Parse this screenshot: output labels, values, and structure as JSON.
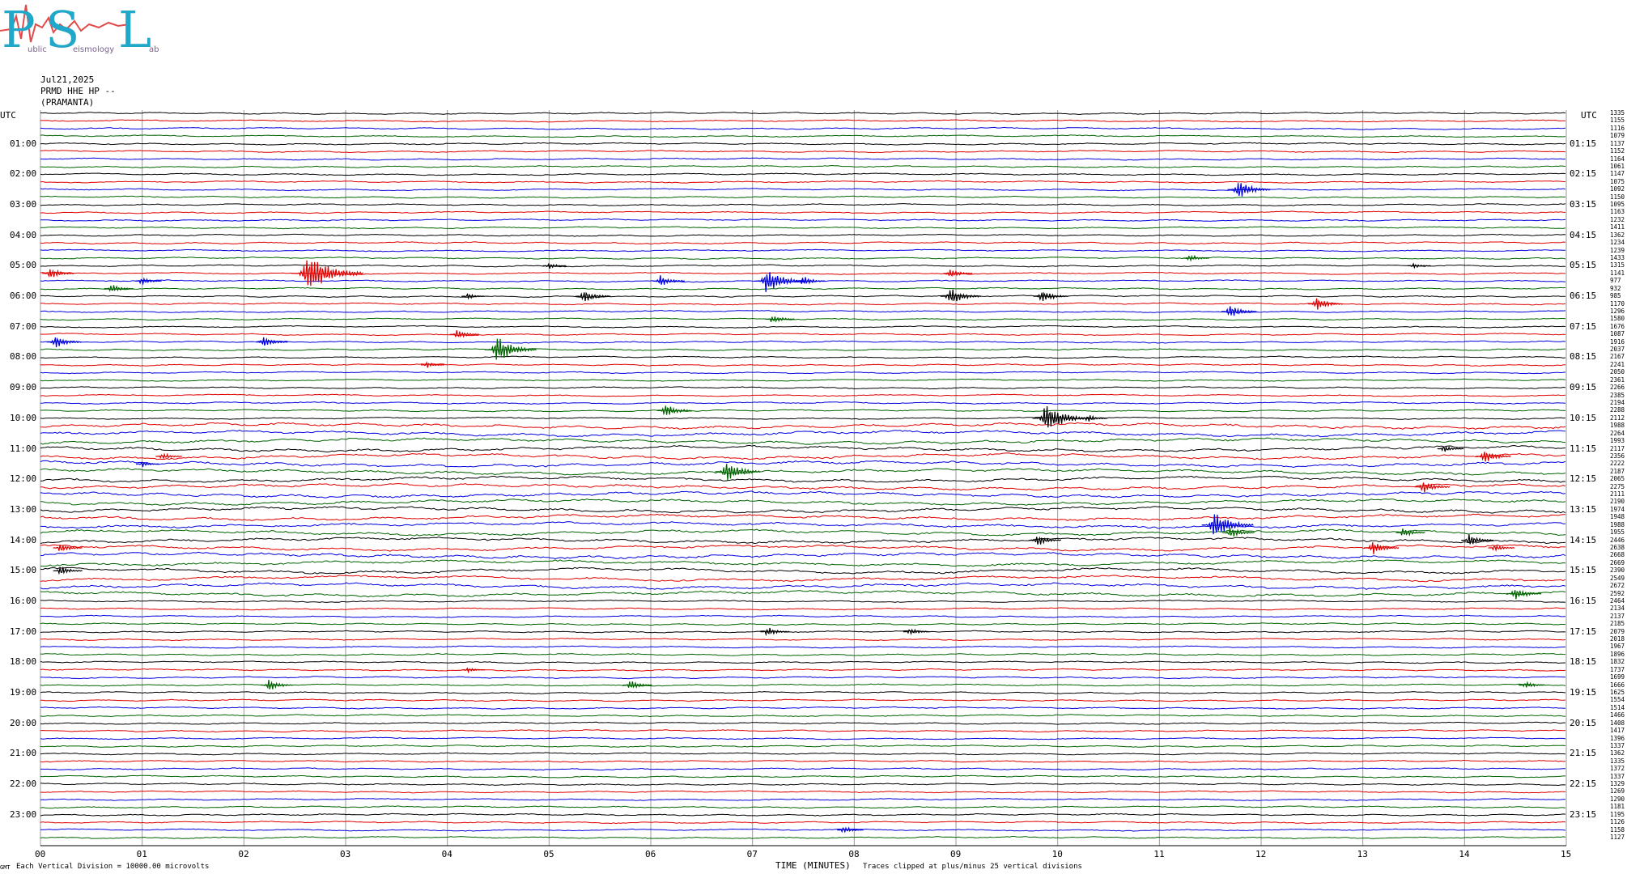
{
  "logo": {
    "letters": [
      "P",
      "S",
      "L"
    ],
    "words": [
      "ublic",
      "eismology",
      "ab"
    ],
    "accent_color": "#21a8c8",
    "trace_color": "#e24b4b"
  },
  "header": {
    "date": "Jul21,2025",
    "station": "PRMD HHE HP --",
    "location": "(PRAMANTA)"
  },
  "axis": {
    "left_unit": "UTC",
    "right_unit": "UTC",
    "xlabel": "TIME (MINUTES)",
    "footer_left": "Each Vertical Division = 10000.00 microvolts",
    "footer_right": "Traces clipped at plus/minus 25 vertical divisions",
    "corner_mark": "GMT"
  },
  "chart_data": {
    "type": "line",
    "title": "",
    "xlabel": "TIME (MINUTES)",
    "ylabel": "UTC",
    "xlim": [
      0,
      15
    ],
    "x_ticks": [
      "00",
      "01",
      "02",
      "03",
      "04",
      "05",
      "06",
      "07",
      "08",
      "09",
      "10",
      "11",
      "12",
      "13",
      "14",
      "15"
    ],
    "left_hour_labels": [
      "01:00",
      "02:00",
      "03:00",
      "04:00",
      "05:00",
      "06:00",
      "07:00",
      "08:00",
      "09:00",
      "10:00",
      "11:00",
      "12:00",
      "13:00",
      "14:00",
      "15:00",
      "16:00",
      "17:00",
      "18:00",
      "19:00",
      "20:00",
      "21:00",
      "22:00",
      "23:00"
    ],
    "right_hour_labels": [
      "01:15",
      "02:15",
      "03:15",
      "04:15",
      "05:15",
      "06:15",
      "07:15",
      "08:15",
      "09:15",
      "10:15",
      "11:15",
      "12:15",
      "13:15",
      "14:15",
      "15:15",
      "16:15",
      "17:15",
      "18:15",
      "19:15",
      "20:15",
      "21:15",
      "22:15",
      "23:15"
    ],
    "rows_per_hour": 4,
    "trace_color_cycle": [
      "#000000",
      "#e00000",
      "#0000e0",
      "#006400"
    ],
    "grid": true,
    "row_values": [
      "1335",
      "1155",
      "1116",
      "1079",
      "1137",
      "1152",
      "1164",
      "1061",
      "1147",
      "1075",
      "1092",
      "1150",
      "1095",
      "1163",
      "1232",
      "1411",
      "1362",
      "1234",
      "1239",
      "1433",
      "1315",
      "1141",
      "977",
      "932",
      "985",
      "1170",
      "1296",
      "1580",
      "1676",
      "1087",
      "1916",
      "2037",
      "2167",
      "2241",
      "2050",
      "2361",
      "2266",
      "2385",
      "2194",
      "2288",
      "2112",
      "1988",
      "2264",
      "1993",
      "2117",
      "2356",
      "2222",
      "2187",
      "2065",
      "2275",
      "2111",
      "2190",
      "1974",
      "1948",
      "1988",
      "1955",
      "2446",
      "2638",
      "2668",
      "2669",
      "2390",
      "2549",
      "2672",
      "2592",
      "2464",
      "2134",
      "2137",
      "2185",
      "2079",
      "2018",
      "1967",
      "1896",
      "1832",
      "1737",
      "1699",
      "1666",
      "1625",
      "1554",
      "1514",
      "1466",
      "1408",
      "1417",
      "1396",
      "1337",
      "1362",
      "1335",
      "1372",
      "1337",
      "1329",
      "1269",
      "1290",
      "1181",
      "1195",
      "1126",
      "1158",
      "1127"
    ],
    "events": [
      {
        "row": 10,
        "minute": 11.78,
        "amp": 10
      },
      {
        "row": 19,
        "minute": 11.3,
        "amp": 4
      },
      {
        "row": 20,
        "minute": 5.0,
        "amp": 3
      },
      {
        "row": 20,
        "minute": 13.5,
        "amp": 3
      },
      {
        "row": 21,
        "minute": 0.1,
        "amp": 6
      },
      {
        "row": 21,
        "minute": 2.65,
        "amp": 20
      },
      {
        "row": 21,
        "minute": 8.95,
        "amp": 5
      },
      {
        "row": 22,
        "minute": 1.0,
        "amp": 4
      },
      {
        "row": 22,
        "minute": 6.1,
        "amp": 6
      },
      {
        "row": 22,
        "minute": 7.15,
        "amp": 13
      },
      {
        "row": 22,
        "minute": 7.5,
        "amp": 5
      },
      {
        "row": 23,
        "minute": 0.7,
        "amp": 5
      },
      {
        "row": 24,
        "minute": 4.2,
        "amp": 3
      },
      {
        "row": 24,
        "minute": 5.35,
        "amp": 7
      },
      {
        "row": 24,
        "minute": 8.95,
        "amp": 9
      },
      {
        "row": 24,
        "minute": 9.85,
        "amp": 7
      },
      {
        "row": 25,
        "minute": 12.55,
        "amp": 7
      },
      {
        "row": 26,
        "minute": 11.7,
        "amp": 7
      },
      {
        "row": 27,
        "minute": 7.2,
        "amp": 5
      },
      {
        "row": 29,
        "minute": 4.1,
        "amp": 5
      },
      {
        "row": 30,
        "minute": 0.15,
        "amp": 7
      },
      {
        "row": 30,
        "minute": 2.2,
        "amp": 6
      },
      {
        "row": 31,
        "minute": 4.5,
        "amp": 13
      },
      {
        "row": 33,
        "minute": 3.8,
        "amp": 3
      },
      {
        "row": 39,
        "minute": 6.15,
        "amp": 7
      },
      {
        "row": 40,
        "minute": 9.9,
        "amp": 15
      },
      {
        "row": 40,
        "minute": 10.3,
        "amp": 4
      },
      {
        "row": 44,
        "minute": 13.8,
        "amp": 4
      },
      {
        "row": 45,
        "minute": 1.2,
        "amp": 4
      },
      {
        "row": 45,
        "minute": 14.2,
        "amp": 7
      },
      {
        "row": 46,
        "minute": 1.0,
        "amp": 3
      },
      {
        "row": 47,
        "minute": 6.75,
        "amp": 11
      },
      {
        "row": 49,
        "minute": 13.6,
        "amp": 7
      },
      {
        "row": 54,
        "minute": 11.55,
        "amp": 13
      },
      {
        "row": 55,
        "minute": 11.7,
        "amp": 6
      },
      {
        "row": 55,
        "minute": 13.4,
        "amp": 5
      },
      {
        "row": 56,
        "minute": 9.8,
        "amp": 6
      },
      {
        "row": 56,
        "minute": 14.05,
        "amp": 6
      },
      {
        "row": 57,
        "minute": 0.2,
        "amp": 5
      },
      {
        "row": 57,
        "minute": 13.1,
        "amp": 7
      },
      {
        "row": 57,
        "minute": 14.3,
        "amp": 4
      },
      {
        "row": 60,
        "minute": 0.2,
        "amp": 5
      },
      {
        "row": 63,
        "minute": 14.5,
        "amp": 7
      },
      {
        "row": 68,
        "minute": 7.15,
        "amp": 5
      },
      {
        "row": 68,
        "minute": 8.55,
        "amp": 4
      },
      {
        "row": 73,
        "minute": 4.2,
        "amp": 3
      },
      {
        "row": 75,
        "minute": 2.25,
        "amp": 6
      },
      {
        "row": 75,
        "minute": 5.8,
        "amp": 5
      },
      {
        "row": 75,
        "minute": 14.6,
        "amp": 4
      },
      {
        "row": 94,
        "minute": 7.9,
        "amp": 4
      }
    ]
  }
}
